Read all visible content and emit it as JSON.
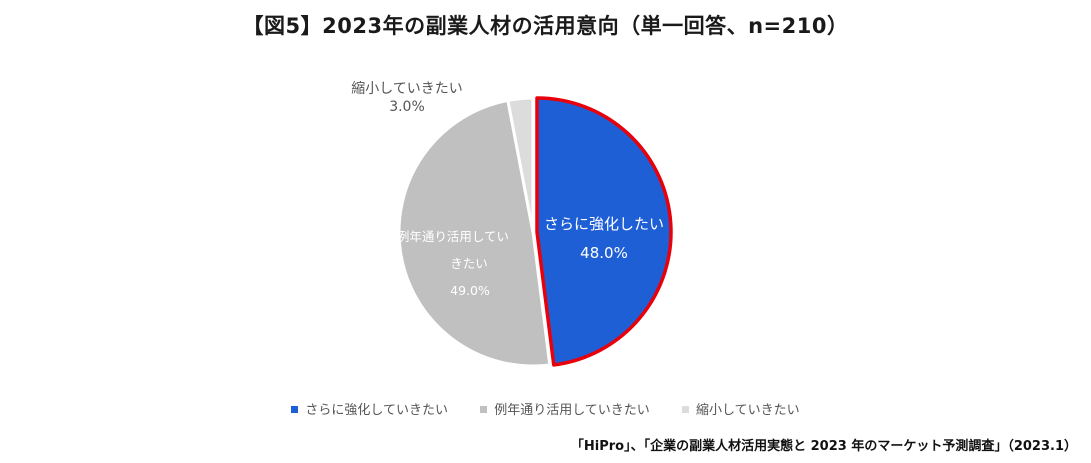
{
  "title": "【図5】2023年の副業人材の活用意向（単一回答、n=210）",
  "source": "「HiPro」、「企業の副業人材活用実態と 2023 年のマーケット予測調査」（2023.1）",
  "chart_data": {
    "type": "pie",
    "title": "【図5】2023年の副業人材の活用意向（単一回答、n=210）",
    "categories": [
      "さらに強化していきたい",
      "例年通り活用していきたい",
      "縮小していきたい"
    ],
    "values": [
      48.0,
      49.0,
      3.0
    ],
    "unit": "%",
    "slice_labels": [
      {
        "lines": [
          "さらに強化したい"
        ],
        "value_text": "48.0%"
      },
      {
        "lines": [
          "例年通り活用してい",
          "きたい"
        ],
        "value_text": "49.0%"
      },
      {
        "lines": [
          "縮小していきたい"
        ],
        "value_text": "3.0%"
      }
    ],
    "colors": [
      "#1f5fd6",
      "#c0c0c0",
      "#dcdcdc"
    ],
    "highlight": {
      "slice": 0,
      "outline_color": "#e8000b"
    },
    "legend_position": "bottom"
  }
}
